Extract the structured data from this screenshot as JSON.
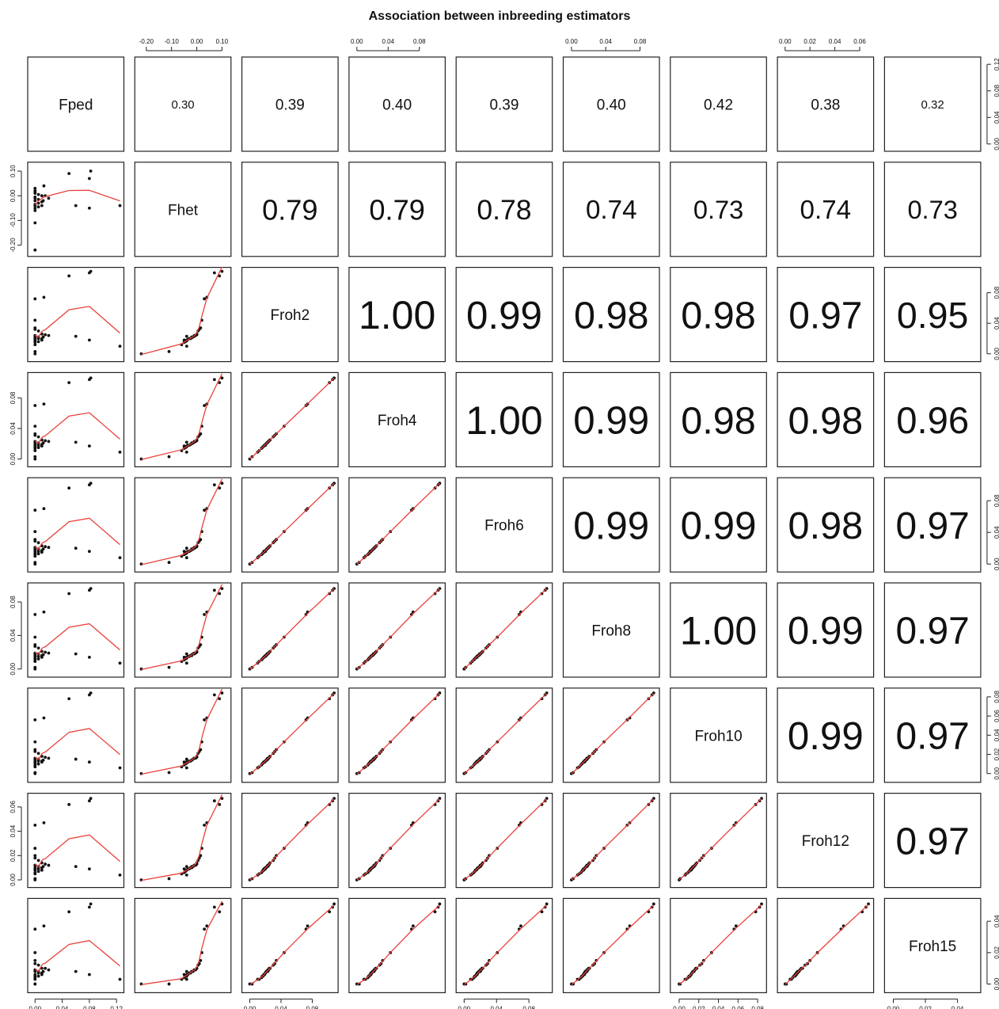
{
  "chart_data": {
    "type": "scatter",
    "title": "Association between inbreeding estimators",
    "variables": [
      "Fped",
      "Fhet",
      "Froh2",
      "Froh4",
      "Froh6",
      "Froh8",
      "Froh10",
      "Froh12",
      "Froh15"
    ],
    "upper_panel": "correlation coefficients (text size scaled by value)",
    "lower_panel": "scatter points with red lowess smoother",
    "correlations": [
      [
        null,
        "0.30",
        "0.39",
        "0.40",
        "0.39",
        "0.40",
        "0.42",
        "0.38",
        "0.32"
      ],
      [
        null,
        null,
        "0.79",
        "0.79",
        "0.78",
        "0.74",
        "0.73",
        "0.74",
        "0.73"
      ],
      [
        null,
        null,
        null,
        "1.00",
        "0.99",
        "0.98",
        "0.98",
        "0.97",
        "0.95"
      ],
      [
        null,
        null,
        null,
        null,
        "1.00",
        "0.99",
        "0.98",
        "0.98",
        "0.96"
      ],
      [
        null,
        null,
        null,
        null,
        null,
        "0.99",
        "0.99",
        "0.98",
        "0.97"
      ],
      [
        null,
        null,
        null,
        null,
        null,
        null,
        "1.00",
        "0.99",
        "0.97"
      ],
      [
        null,
        null,
        null,
        null,
        null,
        null,
        null,
        "0.99",
        "0.97"
      ],
      [
        null,
        null,
        null,
        null,
        null,
        null,
        null,
        null,
        "0.97"
      ]
    ],
    "axis_ranges": {
      "Fped": [
        -0.005,
        0.125
      ],
      "Fhet": [
        -0.23,
        0.12
      ],
      "Froh2": [
        -0.005,
        0.108
      ],
      "Froh4": [
        -0.005,
        0.108
      ],
      "Froh6": [
        -0.005,
        0.104
      ],
      "Froh8": [
        -0.005,
        0.098
      ],
      "Froh10": [
        -0.005,
        0.085
      ],
      "Froh12": [
        -0.003,
        0.068
      ],
      "Froh15": [
        -0.003,
        0.052
      ]
    },
    "axis_ticks": {
      "Fped": [
        "0.00",
        "0.04",
        "0.08",
        "0.12"
      ],
      "Fhet": [
        "-0.20",
        "-0.10",
        "0.00",
        "0.10"
      ],
      "Froh2": [
        "0.00",
        "0.04",
        "0.08"
      ],
      "Froh4": [
        "0.00",
        "0.04",
        "0.08"
      ],
      "Froh6": [
        "0.00",
        "0.04",
        "0.08"
      ],
      "Froh8": [
        "0.00",
        "0.04",
        "0.08"
      ],
      "Froh10": [
        "0.00",
        "0.02",
        "0.04",
        "0.06",
        "0.08"
      ],
      "Froh12": [
        "0.00",
        "0.02",
        "0.04",
        "0.06"
      ],
      "Froh15": [
        "0.00",
        "0.02",
        "0.04"
      ]
    },
    "tick_placement": {
      "top": [
        "Fhet",
        "Froh4",
        "Froh8",
        "Froh12"
      ],
      "bottom": [
        "Fped",
        "Froh2",
        "Froh6",
        "Froh10",
        "Froh15"
      ],
      "left": [
        "Fhet",
        "Froh4",
        "Froh8",
        "Froh12"
      ],
      "right": [
        "Fped",
        "Froh2",
        "Froh6",
        "Froh10",
        "Froh15"
      ]
    },
    "observations": {
      "Fped": [
        0.0,
        0.0,
        0.0,
        0.0,
        0.005,
        0.0,
        0.01,
        0.0,
        0.005,
        0.01,
        0.0,
        0.012,
        0.005,
        0.0,
        0.0,
        0.015,
        0.01,
        0.02,
        0.005,
        0.0,
        0.0,
        0.06,
        0.08,
        0.125,
        0.0,
        0.0,
        0.013,
        0.05,
        0.08,
        0.082
      ],
      "Fhet": [
        -0.22,
        -0.11,
        -0.06,
        -0.05,
        -0.045,
        -0.04,
        -0.04,
        -0.035,
        -0.03,
        -0.025,
        -0.02,
        -0.02,
        -0.015,
        -0.01,
        -0.005,
        0.0,
        0.0,
        -0.01,
        0.005,
        0.01,
        0.015,
        -0.04,
        -0.05,
        -0.04,
        0.02,
        0.03,
        0.04,
        0.09,
        0.07,
        0.1
      ],
      "Froh2": [
        0.0,
        0.003,
        0.012,
        0.015,
        0.016,
        0.017,
        0.018,
        0.019,
        0.02,
        0.02,
        0.021,
        0.022,
        0.022,
        0.023,
        0.024,
        0.025,
        0.026,
        0.024,
        0.03,
        0.032,
        0.034,
        0.023,
        0.018,
        0.01,
        0.044,
        0.072,
        0.074,
        0.102,
        0.106,
        0.108
      ],
      "Froh4": [
        0.0,
        0.003,
        0.011,
        0.014,
        0.015,
        0.016,
        0.017,
        0.018,
        0.018,
        0.019,
        0.02,
        0.021,
        0.021,
        0.022,
        0.023,
        0.024,
        0.025,
        0.023,
        0.029,
        0.031,
        0.033,
        0.022,
        0.017,
        0.009,
        0.043,
        0.07,
        0.072,
        0.1,
        0.104,
        0.106
      ],
      "Froh6": [
        0.0,
        0.002,
        0.01,
        0.012,
        0.013,
        0.014,
        0.015,
        0.016,
        0.016,
        0.017,
        0.018,
        0.019,
        0.019,
        0.02,
        0.021,
        0.022,
        0.023,
        0.021,
        0.027,
        0.029,
        0.031,
        0.02,
        0.016,
        0.008,
        0.041,
        0.068,
        0.07,
        0.096,
        0.1,
        0.102
      ],
      "Froh8": [
        0.0,
        0.002,
        0.009,
        0.011,
        0.012,
        0.013,
        0.014,
        0.015,
        0.015,
        0.016,
        0.016,
        0.017,
        0.018,
        0.018,
        0.019,
        0.02,
        0.021,
        0.019,
        0.025,
        0.027,
        0.029,
        0.018,
        0.014,
        0.007,
        0.038,
        0.065,
        0.068,
        0.09,
        0.094,
        0.096
      ],
      "Froh10": [
        0.0,
        0.001,
        0.007,
        0.009,
        0.01,
        0.011,
        0.012,
        0.012,
        0.013,
        0.013,
        0.014,
        0.014,
        0.015,
        0.016,
        0.016,
        0.017,
        0.018,
        0.016,
        0.021,
        0.023,
        0.025,
        0.015,
        0.012,
        0.006,
        0.033,
        0.056,
        0.058,
        0.078,
        0.082,
        0.084
      ],
      "Froh12": [
        0.0,
        0.001,
        0.005,
        0.006,
        0.007,
        0.008,
        0.008,
        0.009,
        0.009,
        0.01,
        0.01,
        0.011,
        0.011,
        0.012,
        0.012,
        0.013,
        0.014,
        0.012,
        0.016,
        0.018,
        0.02,
        0.011,
        0.009,
        0.004,
        0.026,
        0.045,
        0.047,
        0.062,
        0.065,
        0.067
      ],
      "Froh15": [
        0.0,
        0.0,
        0.003,
        0.004,
        0.005,
        0.005,
        0.006,
        0.006,
        0.007,
        0.007,
        0.008,
        0.008,
        0.008,
        0.009,
        0.009,
        0.01,
        0.01,
        0.009,
        0.012,
        0.013,
        0.015,
        0.008,
        0.006,
        0.003,
        0.02,
        0.035,
        0.037,
        0.046,
        0.049,
        0.051
      ]
    }
  }
}
